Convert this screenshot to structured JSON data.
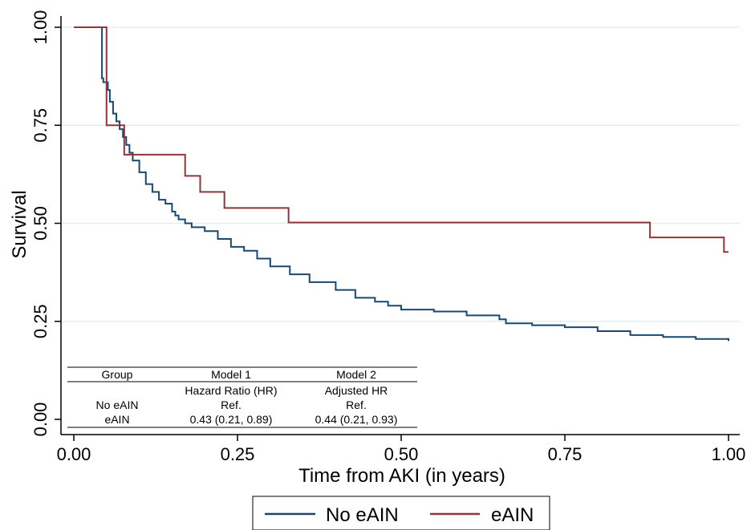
{
  "chart_data": {
    "type": "line",
    "xlabel": "Time from AKI (in years)",
    "ylabel": "Survival",
    "xlim": [
      0,
      1
    ],
    "ylim": [
      0,
      1
    ],
    "x_ticks": [
      "0.00",
      "0.25",
      "0.50",
      "0.75",
      "1.00"
    ],
    "y_ticks": [
      "0.00",
      "0.25",
      "0.50",
      "0.75",
      "1.00"
    ],
    "grid": "horizontal",
    "step": true,
    "legend_position": "bottom",
    "series": [
      {
        "name": "No eAIN",
        "color": "#1a476f",
        "x": [
          0,
          0.043,
          0.045,
          0.052,
          0.055,
          0.06,
          0.065,
          0.07,
          0.075,
          0.08,
          0.085,
          0.09,
          0.1,
          0.11,
          0.12,
          0.13,
          0.14,
          0.15,
          0.155,
          0.16,
          0.17,
          0.18,
          0.2,
          0.22,
          0.24,
          0.26,
          0.28,
          0.3,
          0.33,
          0.36,
          0.4,
          0.43,
          0.46,
          0.48,
          0.5,
          0.55,
          0.6,
          0.65,
          0.66,
          0.7,
          0.75,
          0.8,
          0.85,
          0.9,
          0.95,
          1.0
        ],
        "y": [
          1.0,
          0.87,
          0.86,
          0.84,
          0.81,
          0.78,
          0.76,
          0.74,
          0.72,
          0.7,
          0.68,
          0.66,
          0.63,
          0.6,
          0.58,
          0.56,
          0.55,
          0.53,
          0.52,
          0.51,
          0.5,
          0.49,
          0.48,
          0.46,
          0.44,
          0.43,
          0.41,
          0.39,
          0.37,
          0.35,
          0.33,
          0.31,
          0.3,
          0.29,
          0.28,
          0.275,
          0.265,
          0.255,
          0.245,
          0.24,
          0.235,
          0.225,
          0.215,
          0.21,
          0.205,
          0.2
        ]
      },
      {
        "name": "eAIN",
        "color": "#90353b",
        "x": [
          0,
          0.05,
          0.077,
          0.17,
          0.193,
          0.23,
          0.328,
          0.88,
          0.993,
          1.0
        ],
        "y": [
          1.0,
          0.75,
          0.675,
          0.621,
          0.58,
          0.539,
          0.502,
          0.464,
          0.427,
          0.427
        ]
      }
    ]
  },
  "table": {
    "headers": [
      "Group",
      "Model 1",
      "Model 2"
    ],
    "subheaders": [
      "",
      "Hazard Ratio (HR)",
      "Adjusted HR"
    ],
    "rows": [
      [
        "No eAIN",
        "Ref.",
        "Ref."
      ],
      [
        "eAIN",
        "0.43 (0.21, 0.89)",
        "0.44 (0.21, 0.93)"
      ]
    ]
  },
  "legend": {
    "items": [
      {
        "label": "No eAIN",
        "color": "#1a476f"
      },
      {
        "label": "eAIN",
        "color": "#90353b"
      }
    ]
  }
}
